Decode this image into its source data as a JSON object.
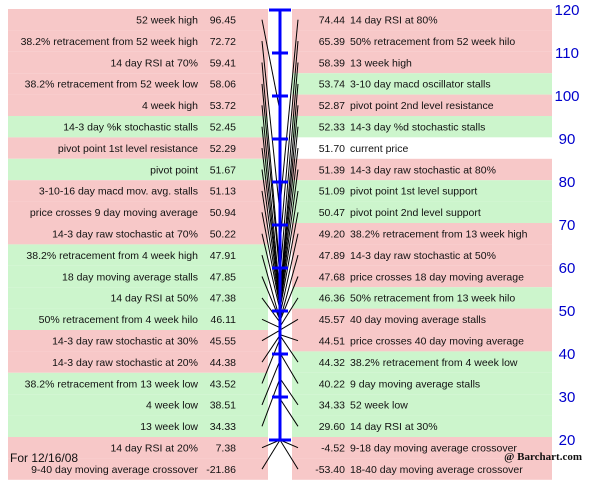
{
  "chart_data": {
    "type": "table",
    "title": "",
    "ylim": [
      20,
      120
    ],
    "axis_ticks": [
      120,
      110,
      100,
      90,
      80,
      70,
      60,
      50,
      40,
      30,
      20
    ],
    "current_price": 51.7,
    "left_rows": [
      {
        "label": "52 week high",
        "value": 96.45,
        "color": "red"
      },
      {
        "label": "38.2% retracement from 52 week high",
        "value": 72.72,
        "color": "red"
      },
      {
        "label": "14 day RSI at 70%",
        "value": 59.41,
        "color": "red"
      },
      {
        "label": "38.2% retracement from 52 week low",
        "value": 58.06,
        "color": "red"
      },
      {
        "label": "4 week high",
        "value": 53.72,
        "color": "red"
      },
      {
        "label": "14-3 day %k stochastic stalls",
        "value": 52.45,
        "color": "green"
      },
      {
        "label": "pivot point 1st level resistance",
        "value": 52.29,
        "color": "red"
      },
      {
        "label": "pivot point",
        "value": 51.67,
        "color": "green"
      },
      {
        "label": "3-10-16 day macd mov. avg. stalls",
        "value": 51.13,
        "color": "red"
      },
      {
        "label": "price crosses 9 day moving average",
        "value": 50.94,
        "color": "red"
      },
      {
        "label": "14-3 day raw stochastic at 70%",
        "value": 50.22,
        "color": "red"
      },
      {
        "label": "38.2% retracement from 4 week high",
        "value": 47.91,
        "color": "green"
      },
      {
        "label": "18 day moving average stalls",
        "value": 47.85,
        "color": "green"
      },
      {
        "label": "14 day RSI at 50%",
        "value": 47.38,
        "color": "green"
      },
      {
        "label": "50% retracement from 4 week hilo",
        "value": 46.11,
        "color": "green"
      },
      {
        "label": "14-3 day raw stochastic at 30%",
        "value": 45.55,
        "color": "red"
      },
      {
        "label": "14-3 day raw stochastic at 20%",
        "value": 44.38,
        "color": "red"
      },
      {
        "label": "38.2% retracement from 13 week low",
        "value": 43.52,
        "color": "green"
      },
      {
        "label": "4 week low",
        "value": 38.51,
        "color": "green"
      },
      {
        "label": "13 week low",
        "value": 34.33,
        "color": "green"
      },
      {
        "label": "14 day RSI at 20%",
        "value": 7.38,
        "color": "red"
      },
      {
        "label": "9-40 day moving average crossover",
        "value": -21.86,
        "color": "red"
      }
    ],
    "right_rows": [
      {
        "label": "14 day RSI at 80%",
        "value": 74.44,
        "color": "red"
      },
      {
        "label": "50% retracement from 52 week hilo",
        "value": 65.39,
        "color": "red"
      },
      {
        "label": "13 week high",
        "value": 58.39,
        "color": "red"
      },
      {
        "label": "3-10 day macd oscillator stalls",
        "value": 53.74,
        "color": "green"
      },
      {
        "label": "pivot point 2nd level resistance",
        "value": 52.87,
        "color": "red"
      },
      {
        "label": "14-3 day %d stochastic stalls",
        "value": 52.33,
        "color": "green"
      },
      {
        "label": "current price",
        "value": 51.7,
        "color": "white"
      },
      {
        "label": "14-3 day raw stochastic at 80%",
        "value": 51.39,
        "color": "red"
      },
      {
        "label": "pivot point 1st level support",
        "value": 51.09,
        "color": "green"
      },
      {
        "label": "pivot point 2nd level support",
        "value": 50.47,
        "color": "green"
      },
      {
        "label": "38.2% retracement from 13 week high",
        "value": 49.2,
        "color": "red"
      },
      {
        "label": "14-3 day raw stochastic at 50%",
        "value": 47.89,
        "color": "red"
      },
      {
        "label": "price crosses 18 day moving average",
        "value": 47.68,
        "color": "red"
      },
      {
        "label": "50% retracement from 13 week hilo",
        "value": 46.36,
        "color": "green"
      },
      {
        "label": "40 day moving average stalls",
        "value": 45.57,
        "color": "red"
      },
      {
        "label": "price crosses 40 day moving average",
        "value": 44.51,
        "color": "red"
      },
      {
        "label": "38.2% retracement from 4 week low",
        "value": 44.32,
        "color": "green"
      },
      {
        "label": "9 day moving average stalls",
        "value": 40.22,
        "color": "green"
      },
      {
        "label": "52 week low",
        "value": 34.33,
        "color": "green"
      },
      {
        "label": "14 day RSI at 30%",
        "value": 29.6,
        "color": "green"
      },
      {
        "label": "9-18 day moving average crossover",
        "value": -4.52,
        "color": "red"
      },
      {
        "label": "18-40 day moving average crossover",
        "value": -53.4,
        "color": "red"
      }
    ],
    "colors": {
      "red": "#f7c8c8",
      "green": "#ccf5cc",
      "white": "#ffffff",
      "axis": "#0000ff",
      "axis_label": "#0000cc"
    }
  },
  "footer": {
    "date": "For 12/16/08",
    "brand": "@ Barchart.com"
  }
}
